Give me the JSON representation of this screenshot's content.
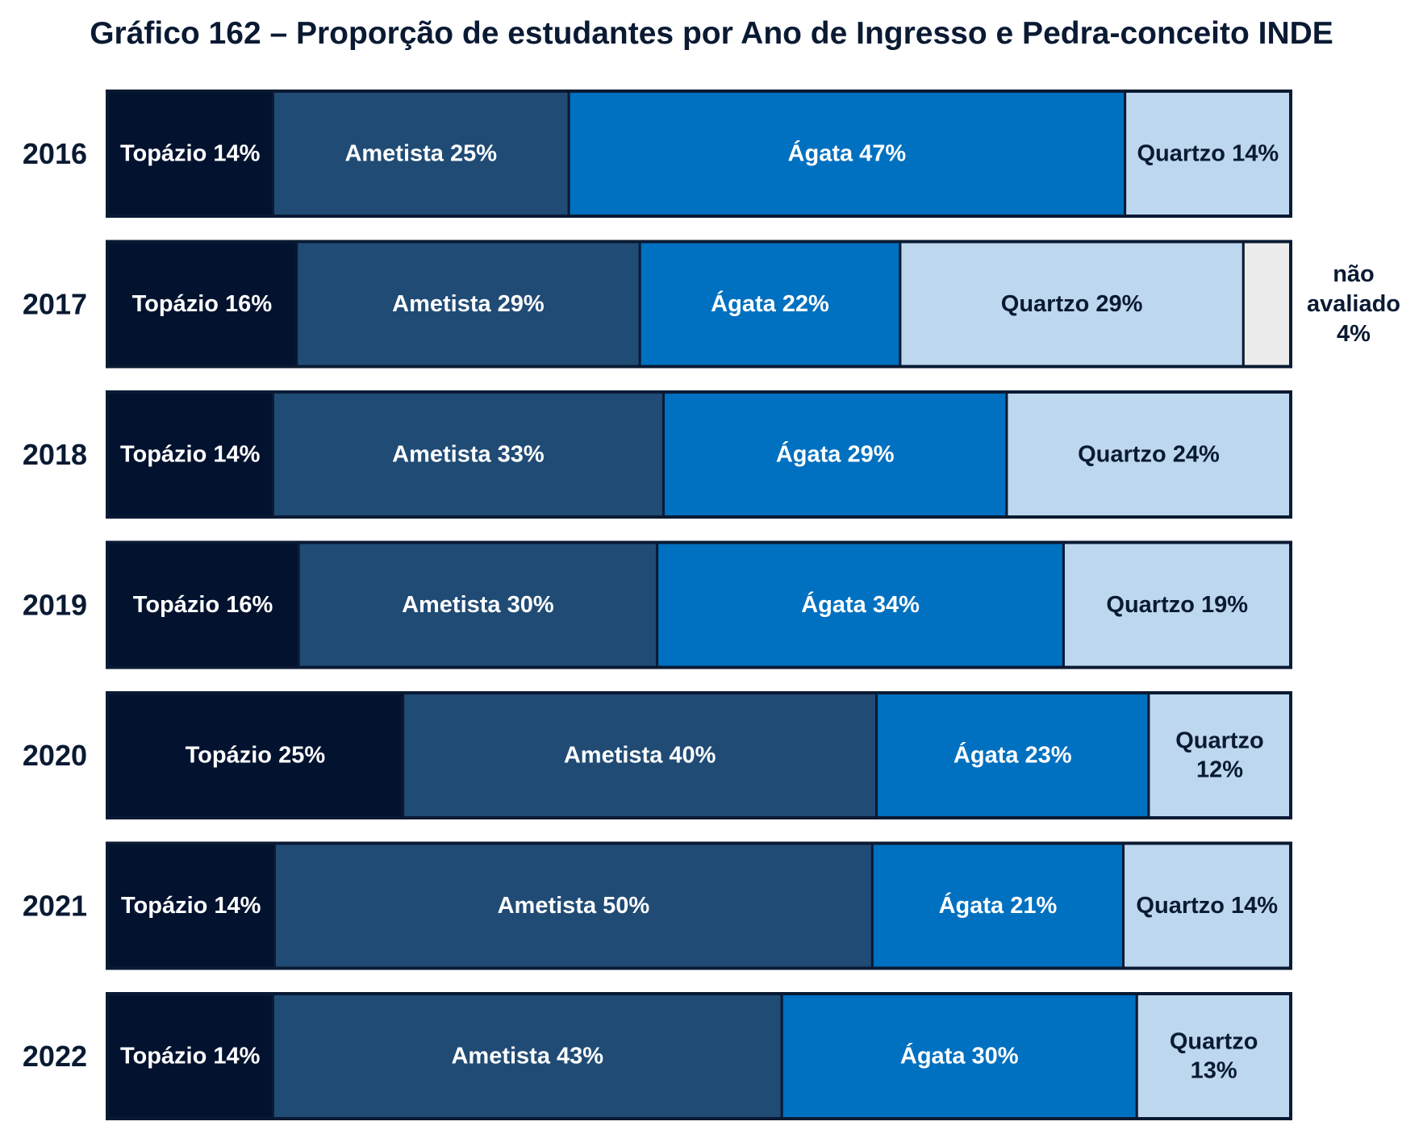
{
  "chart_data": {
    "type": "bar",
    "orientation": "horizontal",
    "stacked": true,
    "normalized": true,
    "title": "Gráfico 162 – Proporção de estudantes por Ano de Ingresso e Pedra-conceito INDE",
    "categories": [
      "2016",
      "2017",
      "2018",
      "2019",
      "2020",
      "2021",
      "2022"
    ],
    "series": [
      {
        "name": "Topázio",
        "color": "#03122f",
        "text_color": "#ffffff",
        "values": [
          14,
          16,
          14,
          16,
          25,
          14,
          14
        ],
        "labels": [
          "Topázio 14%",
          "Topázio 16%",
          "Topázio 14%",
          "Topázio 16%",
          "Topázio 25%",
          "Topázio 14%",
          "Topázio 14%"
        ]
      },
      {
        "name": "Ametista",
        "color": "#204b75",
        "text_color": "#ffffff",
        "values": [
          25,
          29,
          33,
          30,
          40,
          50,
          43
        ],
        "labels": [
          "Ametista 25%",
          "Ametista 29%",
          "Ametista 33%",
          "Ametista 30%",
          "Ametista 40%",
          "Ametista 50%",
          "Ametista 43%"
        ]
      },
      {
        "name": "Ágata",
        "color": "#0070c0",
        "text_color": "#ffffff",
        "values": [
          47,
          22,
          29,
          34,
          23,
          21,
          30
        ],
        "labels": [
          "Ágata 47%",
          "Ágata 22%",
          "Ágata 29%",
          "Ágata 34%",
          "Ágata 23%",
          "Ágata 21%",
          "Ágata 30%"
        ]
      },
      {
        "name": "Quartzo",
        "color": "#bdd7ee",
        "text_color": "#0a1a33",
        "values": [
          14,
          29,
          24,
          19,
          12,
          14,
          13
        ],
        "labels": [
          "Quartzo 14%",
          "Quartzo 29%",
          "Quartzo 24%",
          "Quartzo 19%",
          "Quartzo 12%",
          "Quartzo 14%",
          "Quartzo 13%"
        ]
      },
      {
        "name": "não avaliado",
        "color": "#ececec",
        "text_color": "#0a1a33",
        "values": [
          0,
          4,
          0,
          0,
          0,
          0,
          0
        ],
        "labels": [
          "",
          "",
          "",
          "",
          "",
          "",
          ""
        ]
      }
    ],
    "annotations": [
      {
        "category": "2017",
        "text": "não avaliado 4%",
        "lines": [
          "não",
          "avaliado",
          "4%"
        ],
        "placement": "right of bar"
      }
    ],
    "legend": "none",
    "grid": false,
    "border_color": "#0a1a33"
  }
}
